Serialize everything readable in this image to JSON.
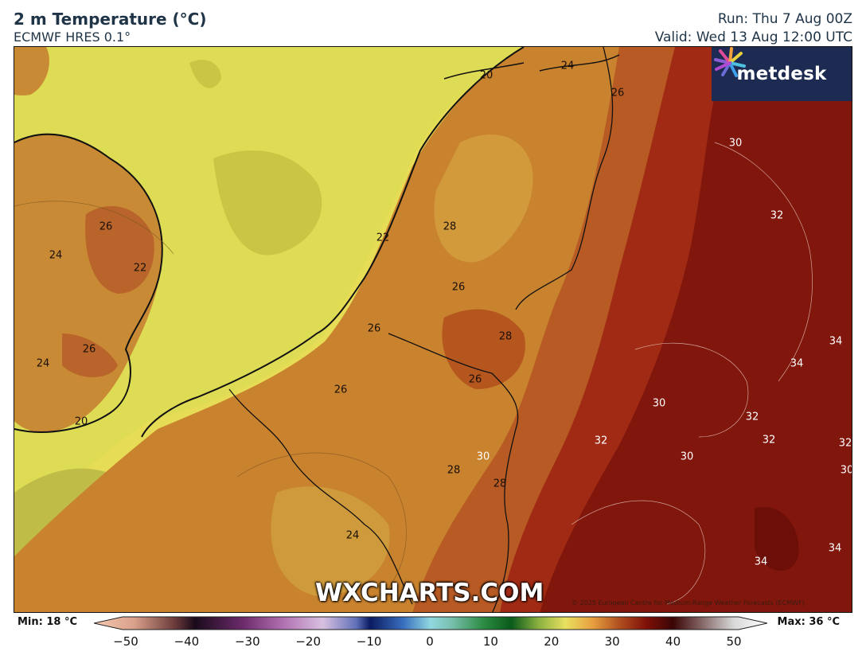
{
  "header": {
    "title": "2 m Temperature (°C)",
    "model": "ECMWF HRES 0.1°",
    "run": "Run: Thu 7 Aug 00Z",
    "valid": "Valid: Wed 13 Aug 12:00 UTC"
  },
  "logo": {
    "text": "metdesk",
    "icon": "metdesk-burst-icon"
  },
  "watermark": "WXCHARTS.COM",
  "copyright": "© 2025 European Centre for Medium-Range Weather Forecasts (ECMWF)",
  "colorbar": {
    "min_label": "Min: 18 °C",
    "max_label": "Max: 36 °C",
    "ticks": [
      "−50",
      "−40",
      "−30",
      "−20",
      "−10",
      "0",
      "10",
      "20",
      "30",
      "40",
      "50"
    ],
    "range": [
      -50,
      50
    ]
  },
  "contour_labels": [
    {
      "text": "20",
      "tone": "dark"
    },
    {
      "text": "24",
      "tone": "dark"
    },
    {
      "text": "26",
      "tone": "dark"
    },
    {
      "text": "26",
      "tone": "dark"
    },
    {
      "text": "22",
      "tone": "dark"
    },
    {
      "text": "24",
      "tone": "dark"
    },
    {
      "text": "22",
      "tone": "dark"
    },
    {
      "text": "28",
      "tone": "dark"
    },
    {
      "text": "26",
      "tone": "dark"
    },
    {
      "text": "26",
      "tone": "dark"
    },
    {
      "text": "28",
      "tone": "dark"
    },
    {
      "text": "24",
      "tone": "dark"
    },
    {
      "text": "26",
      "tone": "dark"
    },
    {
      "text": "26",
      "tone": "dark"
    },
    {
      "text": "26",
      "tone": "dark"
    },
    {
      "text": "20",
      "tone": "dark"
    },
    {
      "text": "30",
      "tone": "light"
    },
    {
      "text": "28",
      "tone": "dark"
    },
    {
      "text": "28",
      "tone": "dark"
    },
    {
      "text": "24",
      "tone": "dark"
    },
    {
      "text": "30",
      "tone": "light"
    },
    {
      "text": "32",
      "tone": "light"
    },
    {
      "text": "34",
      "tone": "light"
    },
    {
      "text": "34",
      "tone": "light"
    },
    {
      "text": "30",
      "tone": "light"
    },
    {
      "text": "32",
      "tone": "light"
    },
    {
      "text": "32",
      "tone": "light"
    },
    {
      "text": "32",
      "tone": "light"
    },
    {
      "text": "30",
      "tone": "light"
    },
    {
      "text": "32",
      "tone": "light"
    },
    {
      "text": "30",
      "tone": "light"
    },
    {
      "text": "34",
      "tone": "light"
    },
    {
      "text": "34",
      "tone": "light"
    }
  ]
}
